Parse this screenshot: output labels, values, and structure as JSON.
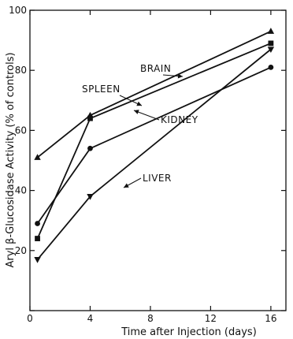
{
  "chart_data": {
    "type": "line",
    "title": "",
    "xlabel": "Time after Injection (days)",
    "ylabel": "Aryl β-Glucosidase Activity (% of controls)",
    "xlim": [
      0,
      17
    ],
    "ylim": [
      0,
      100
    ],
    "xticks": [
      0,
      4,
      8,
      12,
      16
    ],
    "yticks": [
      0,
      20,
      40,
      60,
      80,
      100
    ],
    "x_tick_labels": [
      "0",
      "4",
      "8",
      "12",
      "16"
    ],
    "y_tick_labels": [
      "",
      "20",
      "40",
      "60",
      "80",
      "100"
    ],
    "grid": false,
    "series": [
      {
        "name": "BRAIN",
        "marker": "triangle-up",
        "x": [
          0.5,
          4,
          16
        ],
        "values": [
          51,
          65,
          93
        ]
      },
      {
        "name": "SPLEEN",
        "marker": "square",
        "x": [
          0.5,
          4,
          16
        ],
        "values": [
          24,
          64,
          89
        ]
      },
      {
        "name": "KIDNEY",
        "marker": "circle",
        "x": [
          0.5,
          4,
          16
        ],
        "values": [
          29,
          54,
          81
        ]
      },
      {
        "name": "LIVER",
        "marker": "triangle-down",
        "x": [
          0.5,
          4,
          16
        ],
        "values": [
          17,
          38,
          87
        ]
      }
    ],
    "annotations": [
      {
        "text": "BRAIN",
        "series": "BRAIN"
      },
      {
        "text": "SPLEEN",
        "series": "SPLEEN"
      },
      {
        "text": "KIDNEY",
        "series": "KIDNEY"
      },
      {
        "text": "LIVER",
        "series": "LIVER"
      }
    ]
  }
}
